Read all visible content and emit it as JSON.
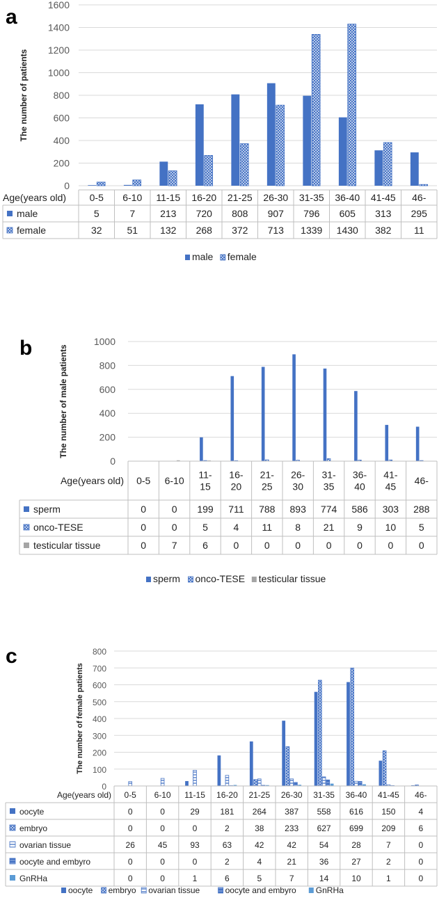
{
  "colors": {
    "blue": "#4472C4",
    "light_blue": "#5B9BD5",
    "grid": "#d9d9d9",
    "table_border": "#bfbfbf",
    "axis_text": "#595959"
  },
  "chart_data": [
    {
      "type": "bar",
      "panel_label": "a",
      "ylabel": "The number of patients",
      "xlabel": "Age(years old)",
      "ylim": [
        0,
        1600
      ],
      "yticks": [
        "0",
        "200",
        "400",
        "600",
        "800",
        "1000",
        "1200",
        "1400",
        "1600"
      ],
      "categories": [
        "0-5",
        "6-10",
        "11-15",
        "16-20",
        "21-25",
        "26-30",
        "31-35",
        "36-40",
        "41-45",
        "46-"
      ],
      "series": [
        {
          "name": "male",
          "pattern": "solid",
          "values": [
            5,
            7,
            213,
            720,
            808,
            907,
            796,
            605,
            313,
            295
          ]
        },
        {
          "name": "female",
          "pattern": "cross",
          "values": [
            32,
            51,
            132,
            268,
            372,
            713,
            1339,
            1430,
            382,
            11
          ]
        }
      ]
    },
    {
      "type": "bar",
      "panel_label": "b",
      "ylabel": "The number of male patients",
      "xlabel": "Age(years old)",
      "ylim": [
        0,
        1000
      ],
      "yticks": [
        "0",
        "200",
        "400",
        "600",
        "800",
        "1000"
      ],
      "categories": [
        "0-5",
        "6-10",
        "11-\n15",
        "16-\n20",
        "21-\n25",
        "26-\n30",
        "31-\n35",
        "36-\n40",
        "41-\n45",
        "46-"
      ],
      "series": [
        {
          "name": "sperm",
          "pattern": "solid",
          "values": [
            0,
            0,
            199,
            711,
            788,
            893,
            774,
            586,
            303,
            288
          ]
        },
        {
          "name": "onco-TESE",
          "pattern": "cross",
          "values": [
            0,
            0,
            5,
            4,
            11,
            8,
            21,
            9,
            10,
            5
          ]
        },
        {
          "name": "testicular tissue",
          "pattern": "gray",
          "values": [
            0,
            7,
            6,
            0,
            0,
            0,
            0,
            0,
            0,
            0
          ]
        }
      ]
    },
    {
      "type": "bar",
      "panel_label": "c",
      "ylabel": "The number of female patients",
      "xlabel": "Age(years old)",
      "ylim": [
        0,
        800
      ],
      "yticks": [
        "0",
        "100",
        "200",
        "300",
        "400",
        "500",
        "600",
        "700",
        "800"
      ],
      "categories": [
        "0-5",
        "6-10",
        "11-15",
        "16-20",
        "21-25",
        "26-30",
        "31-35",
        "36-40",
        "41-45",
        "46-"
      ],
      "series": [
        {
          "name": "oocyte",
          "pattern": "solid",
          "values": [
            0,
            0,
            29,
            181,
            264,
            387,
            558,
            616,
            150,
            4
          ]
        },
        {
          "name": "embryo",
          "pattern": "cross",
          "values": [
            0,
            0,
            0,
            2,
            38,
            233,
            627,
            699,
            209,
            6
          ]
        },
        {
          "name": "ovarian tissue",
          "pattern": "hline",
          "values": [
            26,
            45,
            93,
            63,
            42,
            42,
            54,
            28,
            7,
            0
          ]
        },
        {
          "name": "oocyte and embyro",
          "pattern": "mixed",
          "values": [
            0,
            0,
            0,
            2,
            4,
            21,
            36,
            27,
            2,
            0
          ]
        },
        {
          "name": "GnRHa",
          "pattern": "light",
          "values": [
            0,
            0,
            1,
            6,
            5,
            7,
            14,
            10,
            1,
            0
          ]
        }
      ]
    }
  ]
}
